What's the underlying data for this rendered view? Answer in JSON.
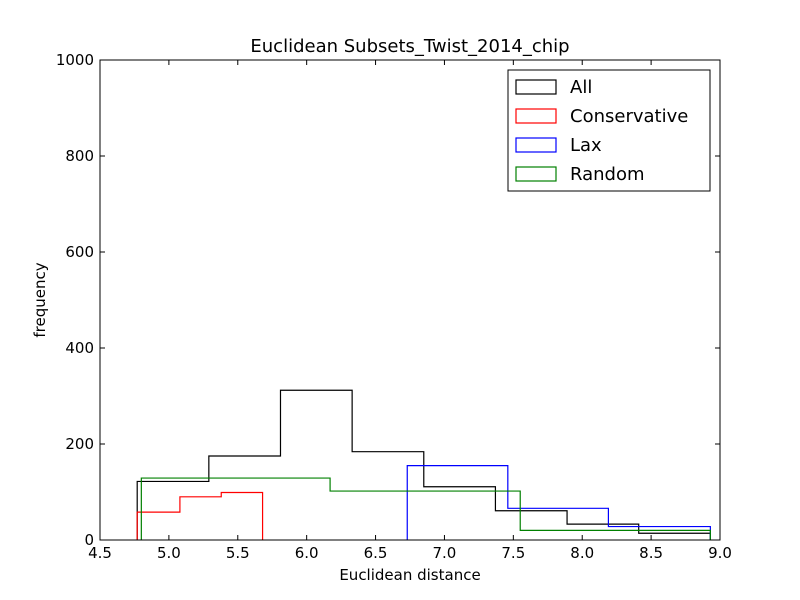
{
  "chart_data": {
    "type": "histogram",
    "title": "Euclidean Subsets_Twist_2014_chip",
    "xlabel": "Euclidean distance",
    "ylabel": "frequency",
    "xlim": [
      4.5,
      9.0
    ],
    "ylim": [
      0,
      1000
    ],
    "xticks": [
      "4.5",
      "5.0",
      "5.5",
      "6.0",
      "6.5",
      "7.0",
      "7.5",
      "8.0",
      "8.5",
      "9.0"
    ],
    "yticks": [
      "0",
      "200",
      "400",
      "600",
      "800",
      "1000"
    ],
    "grid": false,
    "legend_position": "top-right",
    "series": [
      {
        "name": "All",
        "color": "#000000",
        "bin_edges": [
          4.77,
          5.29,
          5.81,
          6.33,
          6.85,
          7.37,
          7.89,
          8.41,
          8.93
        ],
        "counts": [
          122,
          175,
          312,
          184,
          111,
          61,
          33,
          14
        ]
      },
      {
        "name": "Conservative",
        "color": "#ff0000",
        "bin_edges": [
          4.77,
          5.08,
          5.38,
          5.68
        ],
        "counts": [
          58,
          90,
          99
        ]
      },
      {
        "name": "Lax",
        "color": "#0000ff",
        "bin_edges": [
          6.73,
          7.46,
          8.19,
          8.93
        ],
        "counts": [
          155,
          66,
          28
        ]
      },
      {
        "name": "Random",
        "color": "#008000",
        "bin_edges": [
          4.8,
          6.17,
          7.55,
          8.93
        ],
        "counts": [
          129,
          102,
          20
        ]
      }
    ]
  }
}
